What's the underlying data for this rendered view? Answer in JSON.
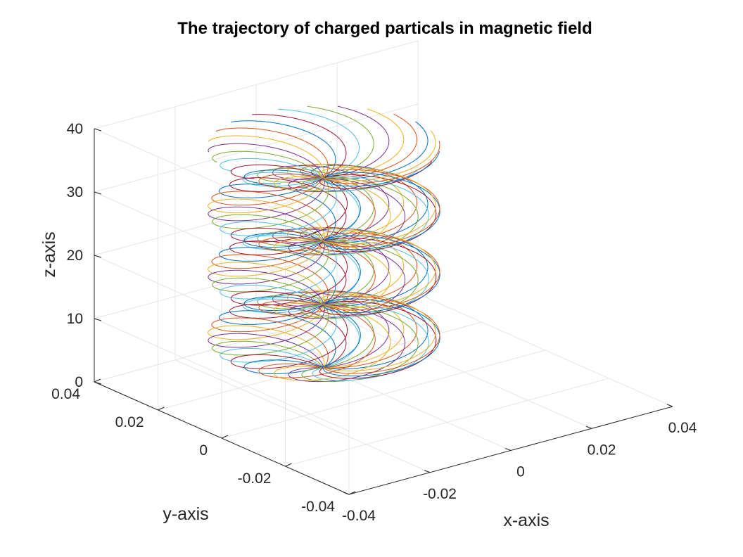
{
  "chart_data": {
    "type": "line",
    "projection": "3d",
    "title": "The trajectory of charged particals in magnetic field",
    "xlabel": "x-axis",
    "ylabel": "y-axis",
    "zlabel": "z-axis",
    "xlim": [
      -0.04,
      0.04
    ],
    "ylim": [
      -0.04,
      0.04
    ],
    "zlim": [
      0,
      40
    ],
    "xticks": [
      "-0.04",
      "-0.02",
      "0",
      "0.02",
      "0.04"
    ],
    "yticks": [
      "-0.04",
      "-0.02",
      "0",
      "0.02",
      "0.04"
    ],
    "zticks": [
      "0",
      "10",
      "20",
      "30",
      "40"
    ],
    "grid": true,
    "trajectory_count": 24,
    "helix": {
      "radius": 0.0113,
      "pitch": 10,
      "turns": 3.5,
      "origin_y": 0.0187,
      "z_start": 0
    },
    "series_colors": [
      "#0072BD",
      "#D95319",
      "#EDB120",
      "#7E2F8E",
      "#77AC30",
      "#4DBEEE",
      "#A2142F"
    ]
  }
}
